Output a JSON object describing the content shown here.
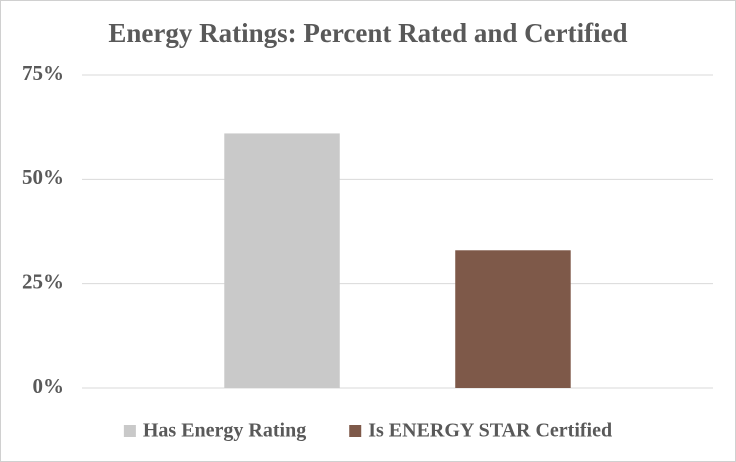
{
  "chart_data": {
    "type": "bar",
    "title": "Energy Ratings: Percent Rated and Certified",
    "series": [
      {
        "name": "Has Energy Rating",
        "color": "#c9c9c9",
        "values": [
          61
        ]
      },
      {
        "name": "Is ENERGY STAR Certified",
        "color": "#7e5949",
        "values": [
          33
        ]
      }
    ],
    "ylim": [
      0,
      75
    ],
    "yticks": [
      {
        "value": 0,
        "label": "0%"
      },
      {
        "value": 25,
        "label": "25%"
      },
      {
        "value": 50,
        "label": "50%"
      },
      {
        "value": 75,
        "label": "75%"
      }
    ],
    "grid": true,
    "legend": "bottom"
  }
}
